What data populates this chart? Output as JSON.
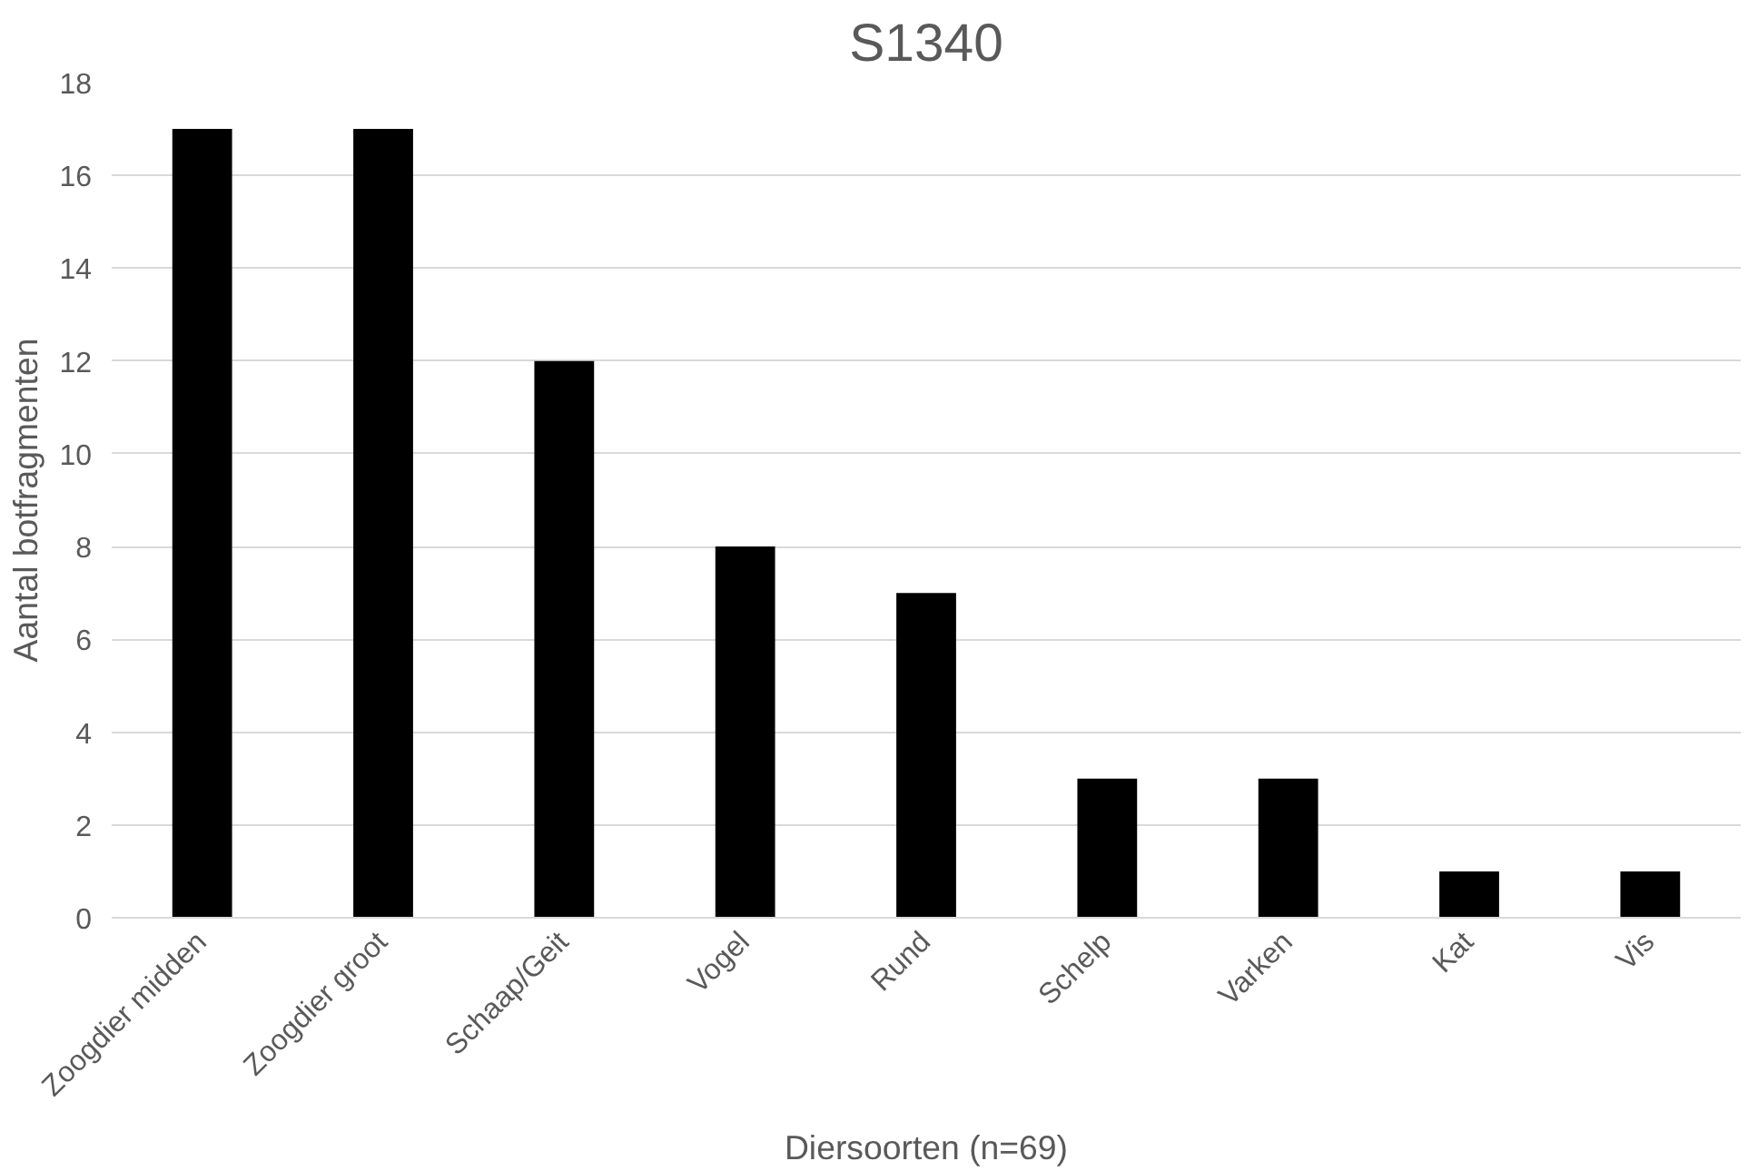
{
  "chart_data": {
    "type": "bar",
    "title": "S1340",
    "xlabel": "Diersoorten (n=69)",
    "ylabel": "Aantal botfragmenten",
    "categories": [
      "Zoogdier midden",
      "Zoogdier groot",
      "Schaap/Geit",
      "Vogel",
      "Rund",
      "Schelp",
      "Varken",
      "Kat",
      "Vis"
    ],
    "values": [
      17,
      17,
      12,
      8,
      7,
      3,
      3,
      1,
      1
    ],
    "color": "#000000",
    "ylim": [
      0,
      18
    ],
    "yticks": [
      0,
      2,
      4,
      6,
      8,
      10,
      12,
      14,
      16,
      18
    ],
    "grid": "y"
  }
}
